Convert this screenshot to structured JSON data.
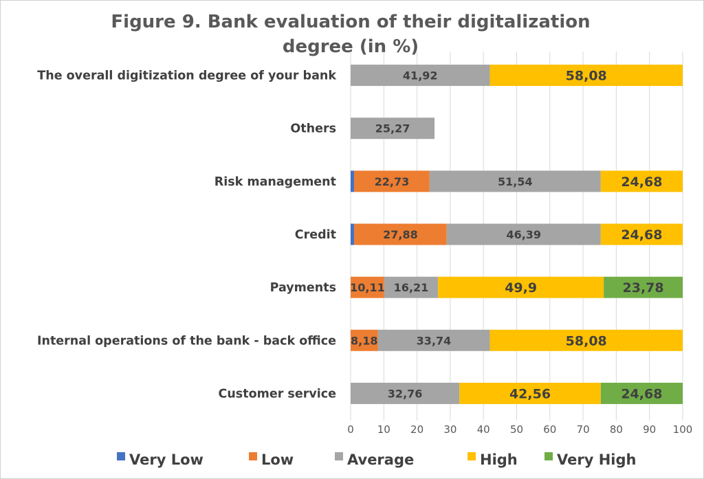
{
  "chart_data": {
    "type": "bar",
    "orientation": "horizontal",
    "stacked": true,
    "title": "Figure 9. Bank evaluation of their digitalization degree (in %)",
    "categories": [
      "The overall digitization degree of your bank",
      "Others",
      "Risk management",
      "Credit",
      "Payments",
      "Internal operations of the bank -  back office",
      "Customer service"
    ],
    "series": [
      {
        "name": "Very Low",
        "color": "#4472C4",
        "values": [
          0,
          0,
          1.05,
          1.05,
          0,
          0,
          0
        ]
      },
      {
        "name": "Low",
        "color": "#ED7D31",
        "values": [
          0,
          0,
          22.73,
          27.88,
          10.11,
          8.18,
          0
        ]
      },
      {
        "name": "Average",
        "color": "#A5A5A5",
        "values": [
          41.92,
          25.27,
          51.54,
          46.39,
          16.21,
          33.74,
          32.76
        ]
      },
      {
        "name": "High",
        "color": "#FFC000",
        "values": [
          58.08,
          0,
          24.68,
          24.68,
          49.9,
          58.08,
          42.56
        ]
      },
      {
        "name": "Very High",
        "color": "#70AD47",
        "values": [
          0,
          0,
          0,
          0,
          23.78,
          0,
          24.68
        ]
      }
    ],
    "data_labels": [
      [
        null,
        null,
        "41,92",
        "58,08",
        null
      ],
      [
        null,
        null,
        "25,27",
        null,
        null
      ],
      [
        null,
        "22,73",
        "51,54",
        "24,68",
        null
      ],
      [
        null,
        "27,88",
        "46,39",
        "24,68",
        null
      ],
      [
        null,
        "10,11",
        "16,21",
        "49,9",
        "23,78"
      ],
      [
        null,
        "8,18",
        "33,74",
        "58,08",
        null
      ],
      [
        null,
        null,
        "32,76",
        "42,56",
        "24,68"
      ]
    ],
    "xlim": [
      0,
      100
    ],
    "xticks": [
      "0",
      "10",
      "20",
      "30",
      "40",
      "50",
      "60",
      "70",
      "80",
      "90",
      "100"
    ],
    "gridlines": "vertical",
    "legend_position": "bottom"
  }
}
